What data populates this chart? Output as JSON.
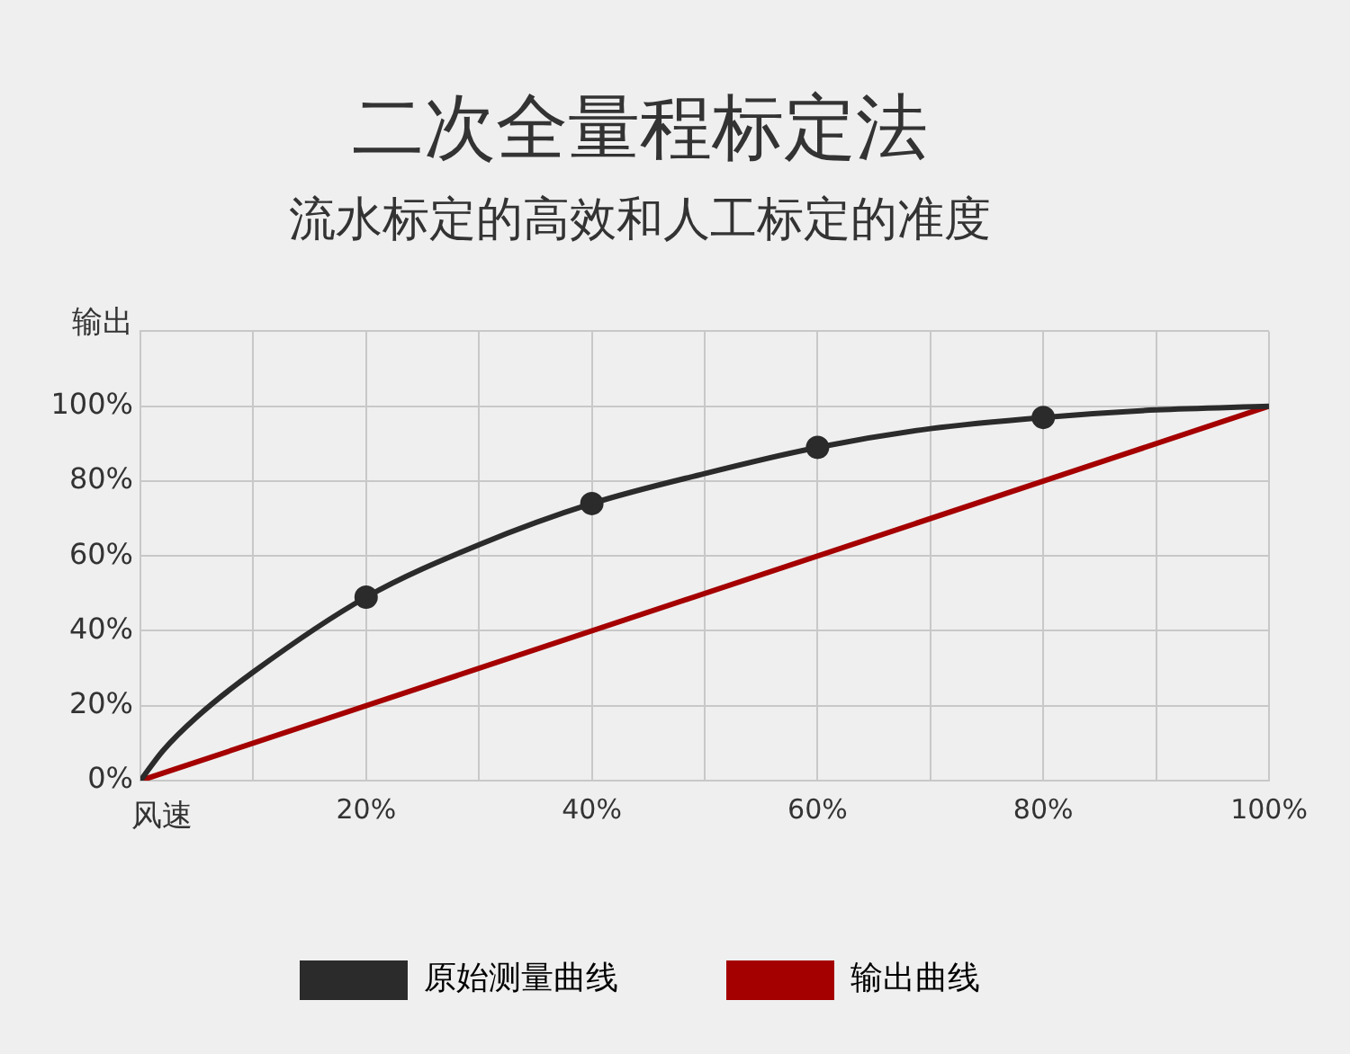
{
  "chart_data": {
    "type": "line",
    "title": "二次全量程标定法",
    "subtitle": "流水标定的高效和人工标定的准度",
    "xlabel": "风速",
    "ylabel": "输出",
    "xlim": [
      0,
      100
    ],
    "xticks": [
      {
        "value": 0,
        "label": null
      },
      {
        "value": 10,
        "label": null
      },
      {
        "value": 20,
        "label": "20%"
      },
      {
        "value": 30,
        "label": null
      },
      {
        "value": 40,
        "label": "40%"
      },
      {
        "value": 50,
        "label": null
      },
      {
        "value": 60,
        "label": "60%"
      },
      {
        "value": 70,
        "label": null
      },
      {
        "value": 80,
        "label": "80%"
      },
      {
        "value": 90,
        "label": null
      },
      {
        "value": 100,
        "label": "100%"
      }
    ],
    "ylim": [
      0,
      120
    ],
    "yticks": [
      {
        "value": 0,
        "label": "0%"
      },
      {
        "value": 20,
        "label": "20%"
      },
      {
        "value": 40,
        "label": "40%"
      },
      {
        "value": 60,
        "label": "60%"
      },
      {
        "value": 80,
        "label": "80%"
      },
      {
        "value": 100,
        "label": "100%"
      },
      {
        "value": 120,
        "label": null
      }
    ],
    "grid": true,
    "legend": "bottom",
    "series": [
      {
        "name": "原始测量曲线",
        "color": "#2b2b2b",
        "type": "line",
        "marker": "none",
        "x": [
          0,
          2,
          5,
          10,
          20,
          30,
          40,
          50,
          60,
          70,
          80,
          90,
          100
        ],
        "values": [
          0,
          8,
          17,
          29,
          49,
          63,
          74,
          82,
          89,
          94,
          97,
          99,
          100
        ]
      },
      {
        "color": "#2b2b2b",
        "type": "scatter",
        "marker": "circle",
        "x": [
          20,
          40,
          60,
          80
        ],
        "values": [
          49,
          74,
          89,
          97
        ]
      },
      {
        "name": "输出曲线",
        "color": "#a50000",
        "type": "line",
        "marker": "none",
        "x": [
          0,
          100
        ],
        "values": [
          0,
          100
        ]
      }
    ]
  }
}
